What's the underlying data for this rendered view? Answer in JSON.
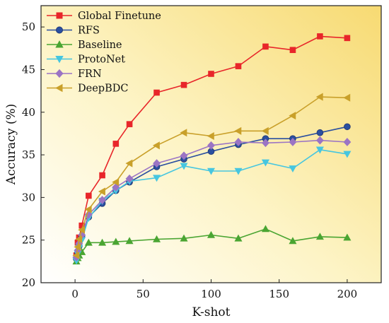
{
  "chart_data": {
    "type": "line",
    "title": "",
    "xlabel": "K-shot",
    "ylabel": "Accuracy (%)",
    "xlim": [
      -25,
      225
    ],
    "ylim": [
      20,
      52.5
    ],
    "xticks": [
      0,
      50,
      100,
      150,
      200
    ],
    "yticks": [
      20,
      25,
      30,
      35,
      40,
      45,
      50
    ],
    "legend_position": "top-left",
    "grid": false,
    "background": "yellow gradient",
    "x": [
      1,
      2,
      3,
      5,
      10,
      20,
      30,
      40,
      60,
      80,
      100,
      120,
      140,
      160,
      180,
      200
    ],
    "series": [
      {
        "name": "Global Finetune",
        "color": "#e8262a",
        "marker": "square",
        "values": [
          23.2,
          24.7,
          25.3,
          26.7,
          30.2,
          32.6,
          36.3,
          38.6,
          42.3,
          43.2,
          44.5,
          45.4,
          47.7,
          47.3,
          48.9,
          48.7
        ]
      },
      {
        "name": "RFS",
        "color": "#2a4fa0",
        "marker": "circle",
        "values": [
          22.8,
          23.5,
          24.3,
          25.5,
          27.7,
          29.3,
          30.8,
          31.8,
          33.6,
          34.5,
          35.4,
          36.2,
          36.9,
          36.9,
          37.6,
          38.3
        ]
      },
      {
        "name": "Baseline",
        "color": "#4aa532",
        "marker": "triangle-up",
        "values": [
          22.5,
          22.9,
          23.2,
          23.6,
          24.7,
          24.7,
          24.8,
          24.9,
          25.1,
          25.2,
          25.6,
          25.2,
          26.3,
          24.9,
          25.4,
          25.3
        ]
      },
      {
        "name": "ProtoNet",
        "color": "#46c6e0",
        "marker": "triangle-down",
        "values": [
          22.6,
          23.4,
          24.1,
          25.0,
          27.6,
          29.6,
          30.8,
          31.9,
          32.3,
          33.7,
          33.1,
          33.1,
          34.1,
          33.4,
          35.6,
          35.1
        ]
      },
      {
        "name": "FRN",
        "color": "#9b74c4",
        "marker": "diamond",
        "values": [
          23.0,
          23.8,
          24.6,
          25.6,
          28.0,
          29.7,
          31.2,
          32.2,
          34.0,
          34.9,
          36.1,
          36.5,
          36.4,
          36.5,
          36.7,
          36.5
        ]
      },
      {
        "name": "DeepBDC",
        "color": "#c9a02a",
        "marker": "triangle-left",
        "values": [
          23.2,
          24.2,
          25.1,
          26.2,
          28.6,
          30.7,
          31.8,
          34.0,
          36.1,
          37.6,
          37.2,
          37.8,
          37.8,
          39.6,
          41.8,
          41.7
        ]
      }
    ]
  }
}
